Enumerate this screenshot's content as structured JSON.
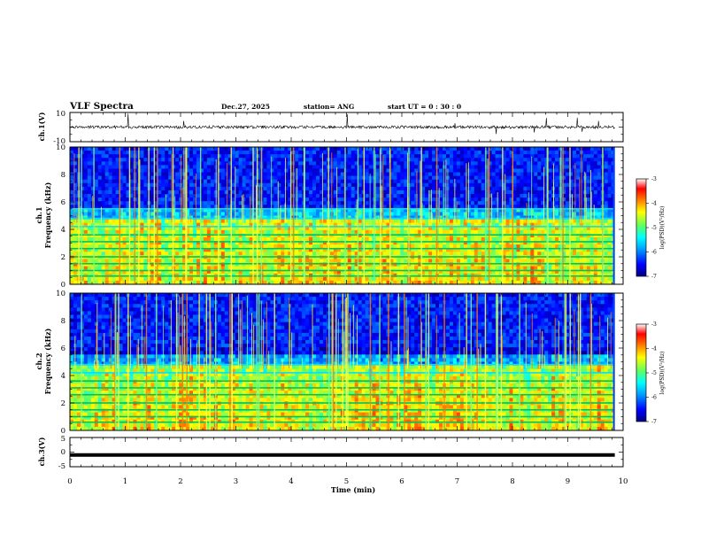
{
  "header": {
    "title": "VLF Spectra",
    "date": "Dec.27, 2025",
    "station": "station= ANG",
    "start_ut": "start  UT =   0 : 30 : 0"
  },
  "colorbar": {
    "label": "log(PSD)(V²/Hz)",
    "ticks": [
      "-3",
      "-4",
      "-5",
      "-6",
      "-7"
    ],
    "colors": [
      "#000080",
      "#0000ff",
      "#00a0ff",
      "#00ffff",
      "#60ff60",
      "#ffff00",
      "#ff8000",
      "#ff0000",
      "#ffffff"
    ]
  },
  "chart_data": [
    {
      "type": "line",
      "panel": "ch1-waveform",
      "ylabel": "ch.1(V)",
      "ylim": [
        -10,
        10
      ],
      "yticks": [
        "10",
        "-10"
      ],
      "baseline": 0,
      "description_values": {
        "typical_amplitude": 1,
        "spike_amplitude": 3
      }
    },
    {
      "type": "heatmap",
      "panel": "ch1-spectrogram",
      "ylabel": "ch.1\nFrequency (kHz)",
      "ylabel_line1": "ch.1",
      "ylabel_line2": "Frequency (kHz)",
      "ylim": [
        0,
        10
      ],
      "yticks": [
        "0",
        "2",
        "4",
        "6",
        "8",
        "10"
      ],
      "zlim": [
        -7,
        -3
      ],
      "z_label": "log(PSD)(V²/Hz)",
      "bands_khz": [
        0.6,
        1.0,
        1.5,
        2.0,
        2.6,
        3.1,
        3.6,
        4.2,
        4.8,
        5.5
      ]
    },
    {
      "type": "heatmap",
      "panel": "ch2-spectrogram",
      "ylabel_line1": "ch.2",
      "ylabel_line2": "Frequency (kHz)",
      "ylim": [
        0,
        10
      ],
      "yticks": [
        "0",
        "2",
        "4",
        "6",
        "8",
        "10"
      ],
      "zlim": [
        -7,
        -3
      ],
      "z_label": "log(PSD)(V²/Hz)",
      "bands_khz": [
        0.6,
        1.0,
        1.5,
        2.0,
        2.6,
        3.1,
        3.6,
        4.2,
        4.8
      ]
    },
    {
      "type": "line",
      "panel": "ch3-waveform",
      "ylabel": "ch.3(V)",
      "ylim": [
        -5,
        5
      ],
      "yticks": [
        "5",
        "0",
        "-5"
      ],
      "baseline": -1
    }
  ],
  "x_axis": {
    "label": "Time (min)",
    "range": [
      0,
      10
    ],
    "data_end": 9.85,
    "ticks": [
      "0",
      "1",
      "2",
      "3",
      "4",
      "5",
      "6",
      "7",
      "8",
      "9",
      "10"
    ]
  }
}
